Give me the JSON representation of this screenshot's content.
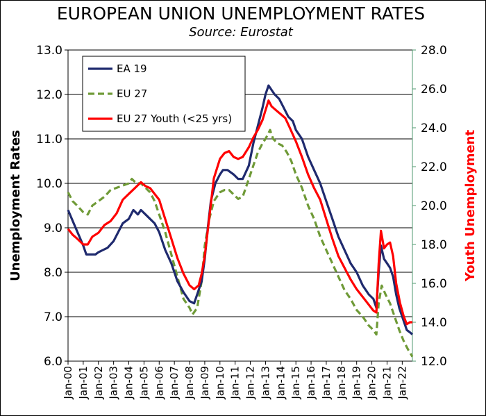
{
  "chart_data": {
    "type": "line",
    "title": "EUROPEAN UNION UNEMPLOYMENT RATES",
    "subtitle": "Source: Eurostat",
    "ylabel": "Unemployment Rates",
    "y2label": "Youth Unemployment",
    "ylim": [
      6.0,
      13.0
    ],
    "y2lim": [
      12.0,
      28.0
    ],
    "yticks": [
      "6.0",
      "7.0",
      "8.0",
      "9.0",
      "10.0",
      "11.0",
      "12.0",
      "13.0"
    ],
    "y2ticks": [
      "12.0",
      "14.0",
      "16.0",
      "18.0",
      "20.0",
      "22.0",
      "24.0",
      "26.0",
      "28.0"
    ],
    "xticks": [
      "Jan-00",
      "Jan-01",
      "Jan-02",
      "Jan-03",
      "Jan-04",
      "Jan-05",
      "Jan-06",
      "Jan-07",
      "Jan-08",
      "Jan-09",
      "Jan-10",
      "Jan-11",
      "Jan-12",
      "Jan-13",
      "Jan-14",
      "Jan-15",
      "Jan-16",
      "Jan-17",
      "Jan-18",
      "Jan-19",
      "Jan-20",
      "Jan-21",
      "Jan-22"
    ],
    "xrange": [
      2000.0,
      2022.67
    ],
    "grid": "horizontal",
    "legend_position": "top-left",
    "colors": {
      "ea19": "#1f2a6e",
      "eu27": "#6f9a37",
      "youth": "#ff0000",
      "right_axis": "#4f9a6f"
    },
    "series": [
      {
        "name": "EA 19",
        "axis": "left",
        "style": "solid",
        "points": [
          [
            2000.0,
            9.4
          ],
          [
            2000.25,
            9.2
          ],
          [
            2000.5,
            9.0
          ],
          [
            2000.75,
            8.8
          ],
          [
            2001.0,
            8.6
          ],
          [
            2001.2,
            8.4
          ],
          [
            2001.5,
            8.4
          ],
          [
            2001.8,
            8.4
          ],
          [
            2002.0,
            8.45
          ],
          [
            2002.3,
            8.5
          ],
          [
            2002.6,
            8.55
          ],
          [
            2003.0,
            8.7
          ],
          [
            2003.3,
            8.9
          ],
          [
            2003.6,
            9.1
          ],
          [
            2004.0,
            9.2
          ],
          [
            2004.3,
            9.4
          ],
          [
            2004.6,
            9.3
          ],
          [
            2004.8,
            9.4
          ],
          [
            2005.1,
            9.3
          ],
          [
            2005.4,
            9.2
          ],
          [
            2005.7,
            9.1
          ],
          [
            2006.0,
            8.9
          ],
          [
            2006.4,
            8.5
          ],
          [
            2006.8,
            8.2
          ],
          [
            2007.2,
            7.8
          ],
          [
            2007.6,
            7.55
          ],
          [
            2008.0,
            7.35
          ],
          [
            2008.3,
            7.3
          ],
          [
            2008.5,
            7.5
          ],
          [
            2008.8,
            7.8
          ],
          [
            2009.0,
            8.3
          ],
          [
            2009.2,
            9.0
          ],
          [
            2009.4,
            9.6
          ],
          [
            2009.7,
            10.0
          ],
          [
            2010.0,
            10.2
          ],
          [
            2010.2,
            10.3
          ],
          [
            2010.5,
            10.3
          ],
          [
            2010.9,
            10.2
          ],
          [
            2011.2,
            10.1
          ],
          [
            2011.5,
            10.1
          ],
          [
            2011.9,
            10.4
          ],
          [
            2012.2,
            10.9
          ],
          [
            2012.5,
            11.3
          ],
          [
            2012.8,
            11.7
          ],
          [
            2013.0,
            12.0
          ],
          [
            2013.2,
            12.2
          ],
          [
            2013.4,
            12.1
          ],
          [
            2013.6,
            12.0
          ],
          [
            2013.9,
            11.9
          ],
          [
            2014.2,
            11.7
          ],
          [
            2014.5,
            11.5
          ],
          [
            2014.8,
            11.4
          ],
          [
            2015.0,
            11.2
          ],
          [
            2015.4,
            11.0
          ],
          [
            2015.8,
            10.6
          ],
          [
            2016.2,
            10.3
          ],
          [
            2016.6,
            10.0
          ],
          [
            2017.0,
            9.6
          ],
          [
            2017.4,
            9.2
          ],
          [
            2017.8,
            8.8
          ],
          [
            2018.2,
            8.5
          ],
          [
            2018.6,
            8.2
          ],
          [
            2019.0,
            8.0
          ],
          [
            2019.4,
            7.7
          ],
          [
            2019.8,
            7.5
          ],
          [
            2020.1,
            7.4
          ],
          [
            2020.3,
            7.2
          ],
          [
            2020.45,
            8.0
          ],
          [
            2020.6,
            8.6
          ],
          [
            2020.8,
            8.3
          ],
          [
            2021.0,
            8.2
          ],
          [
            2021.2,
            8.1
          ],
          [
            2021.4,
            7.9
          ],
          [
            2021.6,
            7.5
          ],
          [
            2021.8,
            7.2
          ],
          [
            2022.1,
            6.9
          ],
          [
            2022.3,
            6.7
          ],
          [
            2022.5,
            6.65
          ],
          [
            2022.67,
            6.6
          ]
        ]
      },
      {
        "name": "EU 27",
        "axis": "left",
        "style": "dashed",
        "points": [
          [
            2000.0,
            9.8
          ],
          [
            2000.3,
            9.6
          ],
          [
            2000.6,
            9.5
          ],
          [
            2001.0,
            9.35
          ],
          [
            2001.3,
            9.3
          ],
          [
            2001.6,
            9.5
          ],
          [
            2002.0,
            9.6
          ],
          [
            2002.4,
            9.7
          ],
          [
            2002.8,
            9.85
          ],
          [
            2003.2,
            9.9
          ],
          [
            2003.6,
            9.95
          ],
          [
            2004.0,
            10.0
          ],
          [
            2004.2,
            10.1
          ],
          [
            2004.5,
            10.0
          ],
          [
            2004.8,
            10.0
          ],
          [
            2005.1,
            9.9
          ],
          [
            2005.4,
            9.8
          ],
          [
            2005.7,
            9.6
          ],
          [
            2006.0,
            9.3
          ],
          [
            2006.4,
            8.9
          ],
          [
            2006.8,
            8.4
          ],
          [
            2007.2,
            7.9
          ],
          [
            2007.6,
            7.4
          ],
          [
            2008.0,
            7.2
          ],
          [
            2008.2,
            7.05
          ],
          [
            2008.5,
            7.2
          ],
          [
            2008.8,
            7.8
          ],
          [
            2009.0,
            8.6
          ],
          [
            2009.3,
            9.2
          ],
          [
            2009.6,
            9.6
          ],
          [
            2010.0,
            9.8
          ],
          [
            2010.3,
            9.85
          ],
          [
            2010.6,
            9.85
          ],
          [
            2010.9,
            9.75
          ],
          [
            2011.2,
            9.65
          ],
          [
            2011.5,
            9.7
          ],
          [
            2011.9,
            10.1
          ],
          [
            2012.2,
            10.4
          ],
          [
            2012.5,
            10.7
          ],
          [
            2012.8,
            10.9
          ],
          [
            2013.0,
            11.0
          ],
          [
            2013.3,
            11.2
          ],
          [
            2013.5,
            11.0
          ],
          [
            2013.8,
            10.9
          ],
          [
            2014.1,
            10.85
          ],
          [
            2014.4,
            10.7
          ],
          [
            2014.7,
            10.5
          ],
          [
            2015.0,
            10.2
          ],
          [
            2015.4,
            9.9
          ],
          [
            2015.8,
            9.5
          ],
          [
            2016.2,
            9.2
          ],
          [
            2016.6,
            8.8
          ],
          [
            2017.0,
            8.5
          ],
          [
            2017.4,
            8.2
          ],
          [
            2017.8,
            7.9
          ],
          [
            2018.2,
            7.6
          ],
          [
            2018.6,
            7.4
          ],
          [
            2019.0,
            7.15
          ],
          [
            2019.4,
            7.0
          ],
          [
            2019.8,
            6.8
          ],
          [
            2020.1,
            6.7
          ],
          [
            2020.3,
            6.6
          ],
          [
            2020.45,
            7.3
          ],
          [
            2020.65,
            7.7
          ],
          [
            2020.9,
            7.5
          ],
          [
            2021.2,
            7.3
          ],
          [
            2021.5,
            7.0
          ],
          [
            2021.8,
            6.7
          ],
          [
            2022.1,
            6.45
          ],
          [
            2022.4,
            6.25
          ],
          [
            2022.67,
            6.1
          ]
        ]
      },
      {
        "name": "EU 27 Youth (<25 yrs)",
        "axis": "right",
        "style": "solid",
        "points": [
          [
            2000.0,
            18.8
          ],
          [
            2000.3,
            18.5
          ],
          [
            2000.6,
            18.3
          ],
          [
            2001.0,
            18.0
          ],
          [
            2001.3,
            18.0
          ],
          [
            2001.6,
            18.4
          ],
          [
            2002.0,
            18.6
          ],
          [
            2002.4,
            19.0
          ],
          [
            2002.8,
            19.2
          ],
          [
            2003.2,
            19.6
          ],
          [
            2003.6,
            20.3
          ],
          [
            2004.0,
            20.6
          ],
          [
            2004.4,
            20.9
          ],
          [
            2004.8,
            21.2
          ],
          [
            2005.1,
            21.0
          ],
          [
            2005.4,
            20.9
          ],
          [
            2005.7,
            20.6
          ],
          [
            2006.0,
            20.3
          ],
          [
            2006.4,
            19.3
          ],
          [
            2006.8,
            18.3
          ],
          [
            2007.2,
            17.3
          ],
          [
            2007.6,
            16.5
          ],
          [
            2008.0,
            15.9
          ],
          [
            2008.3,
            15.7
          ],
          [
            2008.6,
            15.9
          ],
          [
            2008.8,
            16.5
          ],
          [
            2009.0,
            17.4
          ],
          [
            2009.3,
            19.4
          ],
          [
            2009.6,
            21.4
          ],
          [
            2010.0,
            22.4
          ],
          [
            2010.3,
            22.7
          ],
          [
            2010.6,
            22.8
          ],
          [
            2010.9,
            22.5
          ],
          [
            2011.2,
            22.4
          ],
          [
            2011.5,
            22.5
          ],
          [
            2011.9,
            23.0
          ],
          [
            2012.2,
            23.5
          ],
          [
            2012.5,
            23.9
          ],
          [
            2012.8,
            24.4
          ],
          [
            2013.0,
            24.9
          ],
          [
            2013.2,
            25.4
          ],
          [
            2013.4,
            25.1
          ],
          [
            2013.7,
            24.9
          ],
          [
            2014.0,
            24.7
          ],
          [
            2014.3,
            24.5
          ],
          [
            2014.6,
            24.0
          ],
          [
            2015.0,
            23.3
          ],
          [
            2015.4,
            22.5
          ],
          [
            2015.8,
            21.6
          ],
          [
            2016.2,
            20.9
          ],
          [
            2016.6,
            20.3
          ],
          [
            2017.0,
            19.3
          ],
          [
            2017.4,
            18.3
          ],
          [
            2017.8,
            17.4
          ],
          [
            2018.2,
            16.8
          ],
          [
            2018.6,
            16.2
          ],
          [
            2019.0,
            15.7
          ],
          [
            2019.4,
            15.3
          ],
          [
            2019.8,
            14.9
          ],
          [
            2020.1,
            14.6
          ],
          [
            2020.3,
            14.5
          ],
          [
            2020.45,
            17.0
          ],
          [
            2020.6,
            18.7
          ],
          [
            2020.8,
            17.8
          ],
          [
            2021.0,
            18.0
          ],
          [
            2021.2,
            18.1
          ],
          [
            2021.4,
            17.4
          ],
          [
            2021.6,
            16.0
          ],
          [
            2021.85,
            15.0
          ],
          [
            2022.1,
            14.3
          ],
          [
            2022.3,
            13.9
          ],
          [
            2022.5,
            14.0
          ],
          [
            2022.67,
            14.0
          ]
        ]
      }
    ]
  }
}
